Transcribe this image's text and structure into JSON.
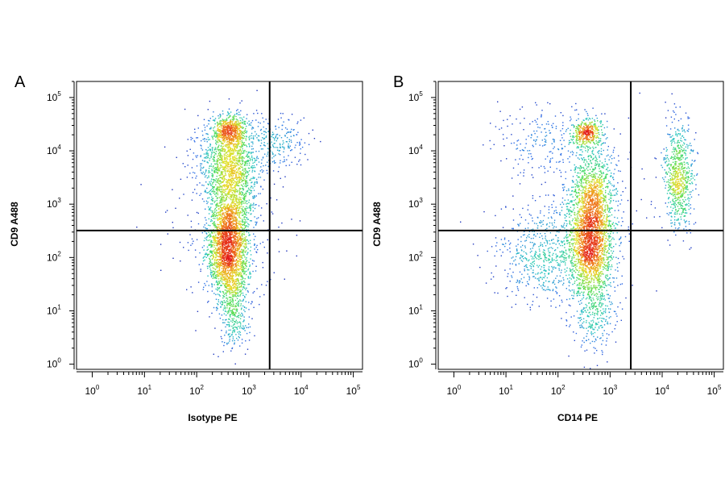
{
  "chart_data": [
    {
      "panel_label": "A",
      "type": "scatter",
      "subtype": "flow-cytometry density dot plot",
      "xlabel": "Isotype PE",
      "ylabel": "CD9 A488",
      "x_scale": "log",
      "y_scale": "log",
      "xlim": [
        0.5,
        150000
      ],
      "ylim": [
        0.8,
        200000
      ],
      "x_ticks": [
        {
          "base": "10",
          "exp": "0"
        },
        {
          "base": "10",
          "exp": "1"
        },
        {
          "base": "10",
          "exp": "2"
        },
        {
          "base": "10",
          "exp": "3"
        },
        {
          "base": "10",
          "exp": "4"
        },
        {
          "base": "10",
          "exp": "5"
        }
      ],
      "y_ticks": [
        {
          "base": "10",
          "exp": "0"
        },
        {
          "base": "10",
          "exp": "1"
        },
        {
          "base": "10",
          "exp": "2"
        },
        {
          "base": "10",
          "exp": "3"
        },
        {
          "base": "10",
          "exp": "4"
        },
        {
          "base": "10",
          "exp": "5"
        }
      ],
      "quadrant_gate": {
        "x": 2500,
        "y": 320
      },
      "populations": [
        {
          "center_x": 400,
          "center_y": 150,
          "spread_log_x": 0.2,
          "spread_log_y": 0.5,
          "share": 0.44
        },
        {
          "center_x": 450,
          "center_y": 3000,
          "spread_log_x": 0.25,
          "spread_log_y": 0.5,
          "share": 0.26
        },
        {
          "center_x": 420,
          "center_y": 25000,
          "spread_log_x": 0.17,
          "spread_log_y": 0.14,
          "share": 0.1
        },
        {
          "center_x": 300,
          "center_y": 8000,
          "spread_log_x": 0.3,
          "spread_log_y": 0.3,
          "share": 0.06
        },
        {
          "center_x": 500,
          "center_y": 10,
          "spread_log_x": 0.15,
          "spread_log_y": 0.4,
          "share": 0.06
        },
        {
          "center_x": 3000,
          "center_y": 15000,
          "spread_log_x": 0.3,
          "spread_log_y": 0.25,
          "share": 0.05
        },
        {
          "center_x": 250,
          "center_y": 500,
          "spread_log_x": 0.6,
          "spread_log_y": 0.8,
          "share": 0.03
        }
      ],
      "grid": false,
      "legend": "none",
      "color_scale": [
        "#1a1aa8",
        "#2f6fe8",
        "#27c5c0",
        "#4ddc5a",
        "#e4e028",
        "#f08a1c",
        "#e31a1a"
      ]
    },
    {
      "panel_label": "B",
      "type": "scatter",
      "subtype": "flow-cytometry density dot plot",
      "xlabel": "CD14 PE",
      "ylabel": "CD9 A488",
      "x_scale": "log",
      "y_scale": "log",
      "xlim": [
        0.5,
        150000
      ],
      "ylim": [
        0.8,
        200000
      ],
      "x_ticks": [
        {
          "base": "10",
          "exp": "0"
        },
        {
          "base": "10",
          "exp": "1"
        },
        {
          "base": "10",
          "exp": "2"
        },
        {
          "base": "10",
          "exp": "3"
        },
        {
          "base": "10",
          "exp": "4"
        },
        {
          "base": "10",
          "exp": "5"
        }
      ],
      "y_ticks": [
        {
          "base": "10",
          "exp": "0"
        },
        {
          "base": "10",
          "exp": "1"
        },
        {
          "base": "10",
          "exp": "2"
        },
        {
          "base": "10",
          "exp": "3"
        },
        {
          "base": "10",
          "exp": "4"
        },
        {
          "base": "10",
          "exp": "5"
        }
      ],
      "quadrant_gate": {
        "x": 2500,
        "y": 320
      },
      "populations": [
        {
          "center_x": 420,
          "center_y": 150,
          "spread_log_x": 0.22,
          "spread_log_y": 0.5,
          "share": 0.34
        },
        {
          "center_x": 450,
          "center_y": 1500,
          "spread_log_x": 0.22,
          "spread_log_y": 0.45,
          "share": 0.2
        },
        {
          "center_x": 350,
          "center_y": 22000,
          "spread_log_x": 0.14,
          "spread_log_y": 0.13,
          "share": 0.08
        },
        {
          "center_x": 20000,
          "center_y": 3500,
          "spread_log_x": 0.14,
          "spread_log_y": 0.5,
          "share": 0.14
        },
        {
          "center_x": 60,
          "center_y": 120,
          "spread_log_x": 0.45,
          "spread_log_y": 0.45,
          "share": 0.12
        },
        {
          "center_x": 500,
          "center_y": 8,
          "spread_log_x": 0.2,
          "spread_log_y": 0.4,
          "share": 0.05
        },
        {
          "center_x": 60,
          "center_y": 15000,
          "spread_log_x": 0.5,
          "spread_log_y": 0.3,
          "share": 0.04
        },
        {
          "center_x": 200,
          "center_y": 800,
          "spread_log_x": 0.7,
          "spread_log_y": 0.8,
          "share": 0.03
        }
      ],
      "grid": false,
      "legend": "none",
      "color_scale": [
        "#1a1aa8",
        "#2f6fe8",
        "#27c5c0",
        "#4ddc5a",
        "#e4e028",
        "#f08a1c",
        "#e31a1a"
      ]
    }
  ]
}
